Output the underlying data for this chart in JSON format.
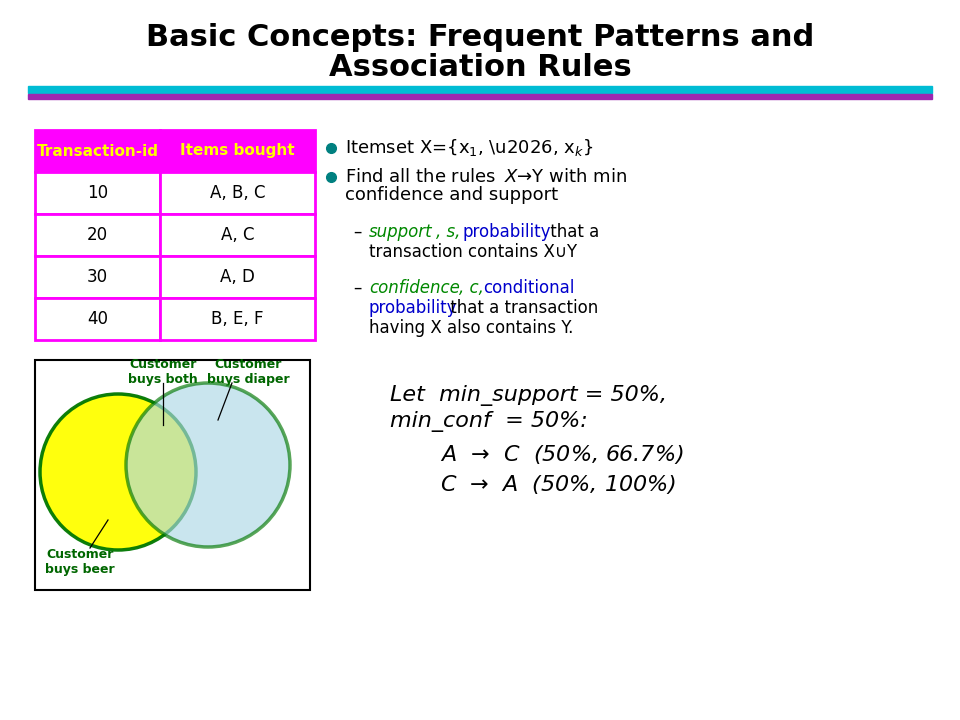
{
  "title_line1": "Basic Concepts: Frequent Patterns and",
  "title_line2": "Association Rules",
  "bg_color": "#ffffff",
  "title_color": "#000000",
  "cyan_bar_color": "#00bcd4",
  "purple_bar_color": "#9c27b0",
  "table_header_bg": "#ff00ff",
  "table_header_color": "#ffff00",
  "table_border_color": "#ff00ff",
  "table_data": [
    [
      "Transaction-id",
      "Items bought"
    ],
    [
      "10",
      "A, B, C"
    ],
    [
      "20",
      "A, C"
    ],
    [
      "30",
      "A, D"
    ],
    [
      "40",
      "B, E, F"
    ]
  ],
  "circle1_color": "#ffff00",
  "circle1_alpha": 0.95,
  "circle2_color": "#add8e6",
  "circle2_alpha": 0.65,
  "circle_border_color": "#007700",
  "label_buys_beer": "Customer\nbuys beer",
  "label_buys_diaper": "Customer\nbuys diaper",
  "label_buys_both": "Customer\nbuys both",
  "green_text_color": "#006600",
  "bullet_color": "#008080",
  "text_color": "#000000",
  "support_color": "#008800",
  "confidence_color": "#008800",
  "probability_color": "#0000cc",
  "dash_color": "#000000"
}
